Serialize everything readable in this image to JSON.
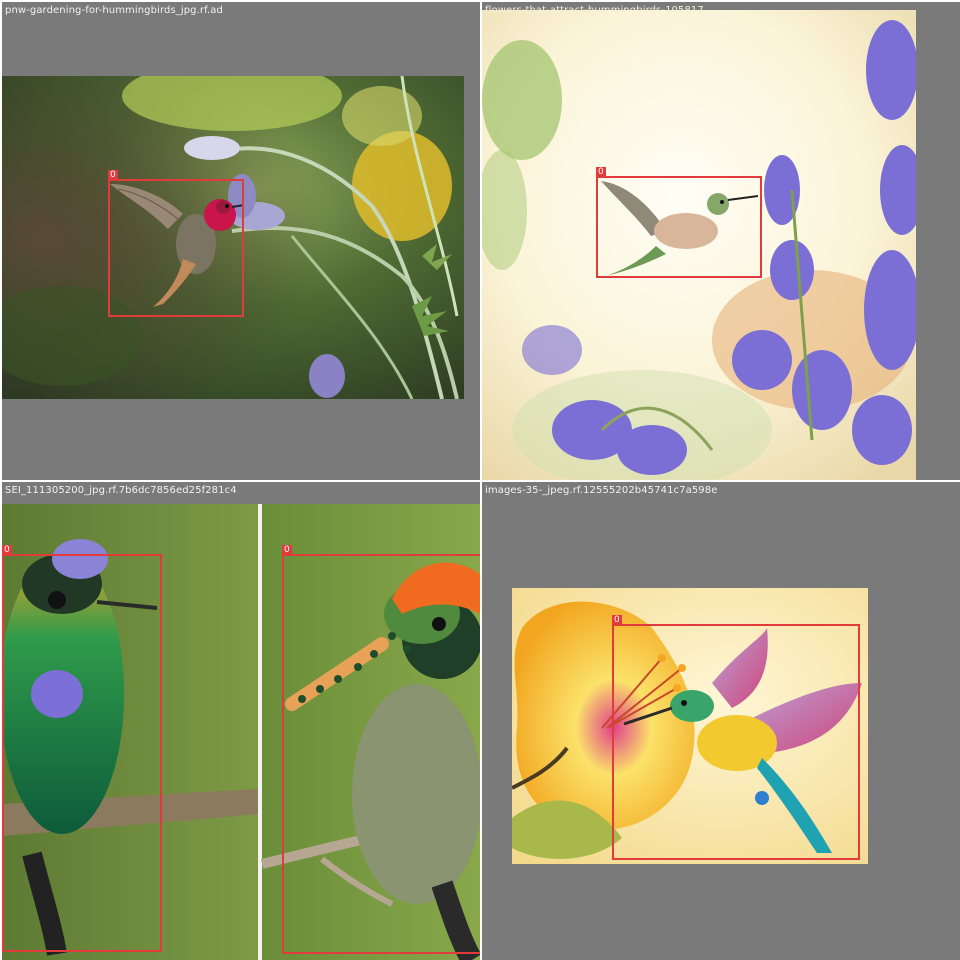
{
  "tiles": [
    {
      "filename": "pnw-gardening-for-hummingbirds_jpg.rf.ad",
      "box_label": "0",
      "subject": "hummingbird"
    },
    {
      "filename": "flowers-that-attract-hummingbirds-105817",
      "box_label": "0",
      "subject": "hummingbird"
    },
    {
      "filename": "SEI_111305200_jpg.rf.7b6dc7856ed25f281c4",
      "box_labels": [
        "0",
        "0"
      ],
      "subject": "hummingbird"
    },
    {
      "filename": "images-35-_jpeg.rf.12555202b45741c7a598e",
      "box_label": "0",
      "subject": "hummingbird"
    }
  ],
  "colors": {
    "bbox": "#e23b3b",
    "tile_background": "#7a7a7a"
  }
}
